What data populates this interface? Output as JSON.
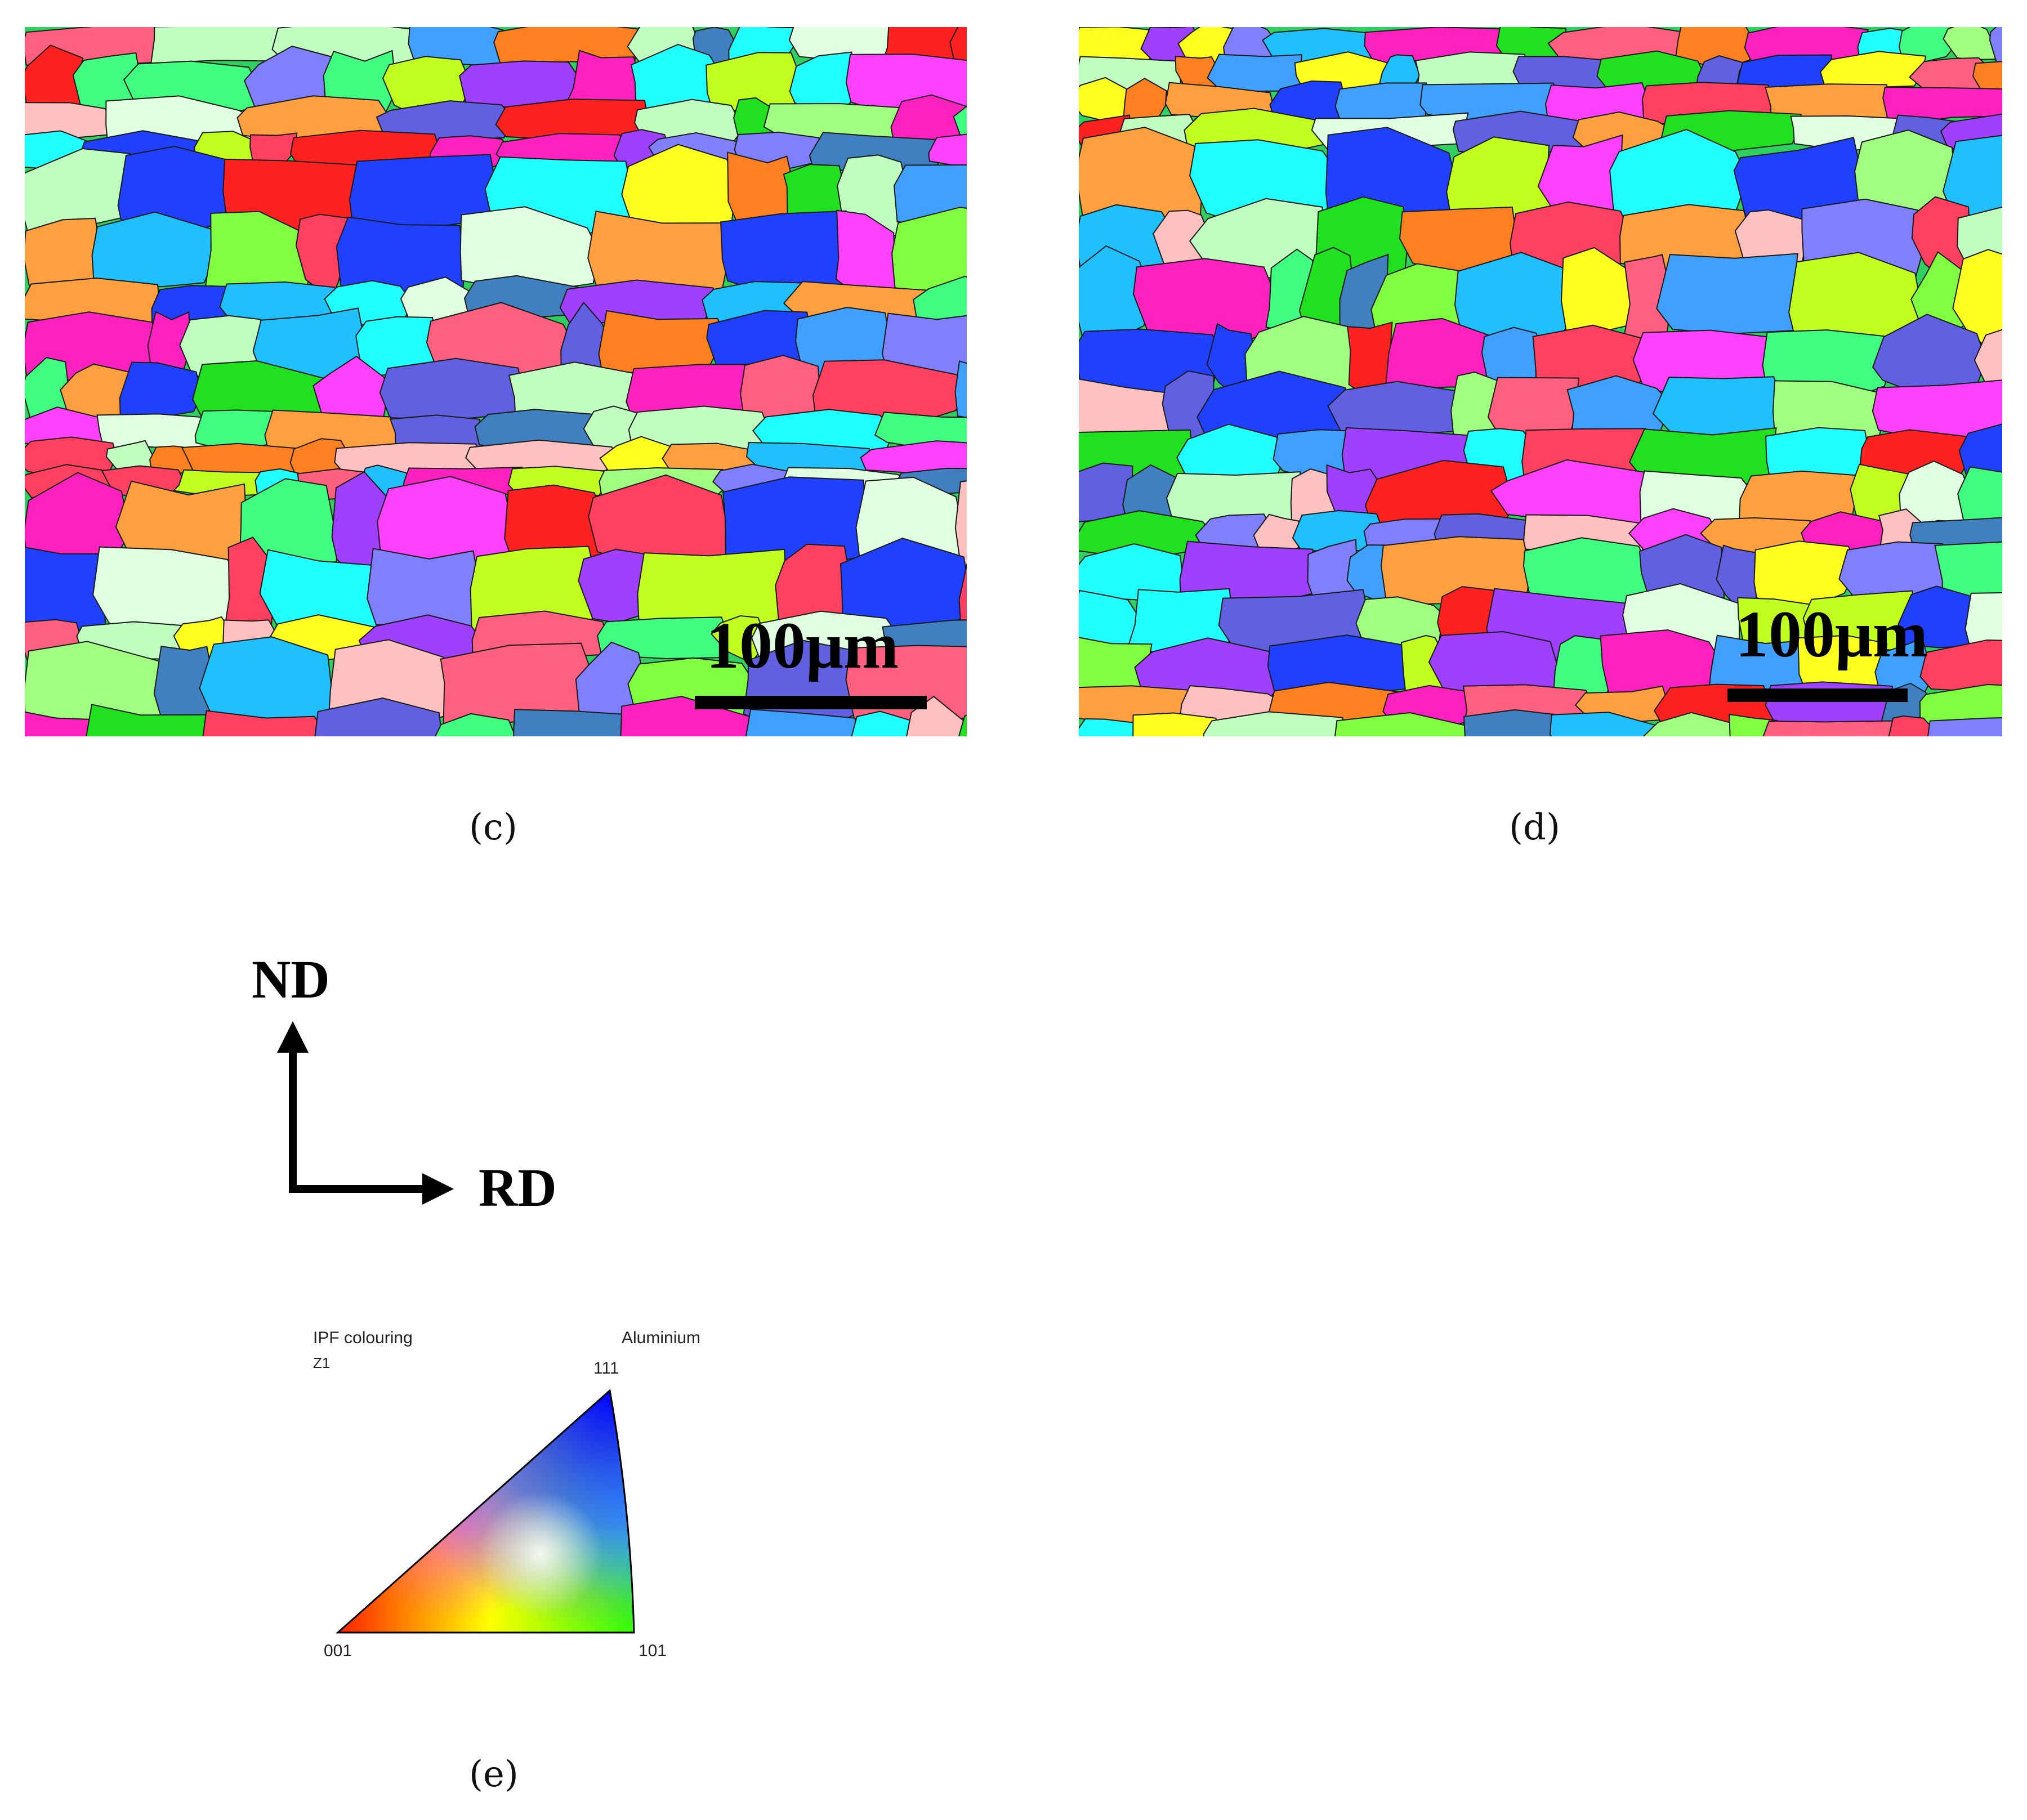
{
  "panels": [
    {
      "id": "c",
      "caption": "(c)",
      "scale_label": "100μm"
    },
    {
      "id": "d",
      "caption": "(d)",
      "scale_label": "100μm"
    }
  ],
  "axes": {
    "vertical": "ND",
    "horizontal": "RD"
  },
  "ipf_key": {
    "title": "IPF colouring",
    "component": "Z1",
    "material": "Aluminium",
    "corners": {
      "top": "111",
      "left": "001",
      "right": "101"
    },
    "colors": {
      "001": "#ff0000",
      "101": "#00ff00",
      "111": "#0000ff"
    }
  },
  "legend_caption": "(e)",
  "grain_palette": [
    "#ff2020",
    "#20e020",
    "#2040ff",
    "#ff20c0",
    "#20ffff",
    "#c0ff20",
    "#ffff20",
    "#a040ff",
    "#ff8020",
    "#40ff80",
    "#8080ff",
    "#ff6080",
    "#20c0ff",
    "#ffc0c0",
    "#c0ffc0",
    "#6060e0",
    "#ff40ff",
    "#80ff40",
    "#40a0ff",
    "#ffa040",
    "#e0ffe0",
    "#4080c0",
    "#ff4060",
    "#a0ff80"
  ]
}
